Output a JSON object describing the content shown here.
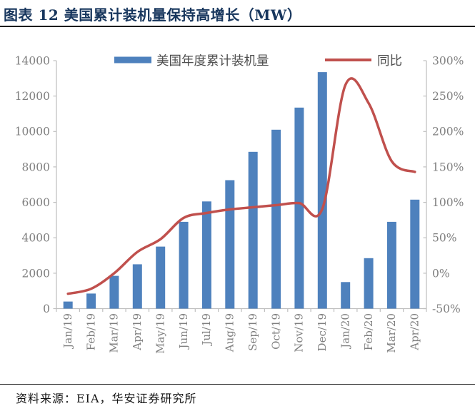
{
  "header": {
    "title": "图表 12 美国累计装机量保持高增长（MW）"
  },
  "footer": {
    "source": "资料来源：EIA，华安证券研究所"
  },
  "colors": {
    "title_navy": "#17365D",
    "bar_blue": "#4E81BD",
    "line_red": "#C0504D",
    "axis_line_gray": "#BFBFBF",
    "axis_text_gray": "#7F7F7F",
    "legend_text_gray": "#4D4D4D"
  },
  "chart_data": {
    "type": "bar+line combo",
    "categories": [
      "Jan/19",
      "Feb/19",
      "Mar/19",
      "Apr/19",
      "May/19",
      "Jun/19",
      "Jul/19",
      "Aug/19",
      "Sep/19",
      "Oct/19",
      "Nov/19",
      "Dec/19",
      "Jan/20",
      "Feb/20",
      "Mar/20",
      "Apr/20"
    ],
    "series": [
      {
        "name": "美国年度累计装机量",
        "type": "bar",
        "axis": "left",
        "color": "#4E81BD",
        "values": [
          400,
          850,
          1850,
          2500,
          3500,
          4900,
          6050,
          7250,
          8850,
          10100,
          11350,
          13350,
          1500,
          2850,
          4900,
          6150
        ]
      },
      {
        "name": "同比",
        "type": "line",
        "axis": "right",
        "color": "#C0504D",
        "smoothed": true,
        "values_pct": [
          -29,
          -22,
          0,
          30,
          48,
          78,
          85,
          90,
          93,
          96,
          99,
          91,
          266,
          240,
          158,
          143
        ]
      }
    ],
    "left_axis": {
      "min": 0,
      "max": 14000,
      "step": 2000,
      "tick_labels": [
        "0",
        "2000",
        "4000",
        "6000",
        "8000",
        "10000",
        "12000",
        "14000"
      ]
    },
    "right_axis": {
      "min": -50,
      "max": 300,
      "step": 50,
      "tick_labels": [
        "-50%",
        "0%",
        "50%",
        "100%",
        "150%",
        "200%",
        "250%",
        "300%"
      ]
    },
    "legend": [
      {
        "label": "美国年度累计装机量",
        "swatch": "bar"
      },
      {
        "label": "同比",
        "swatch": "line"
      }
    ],
    "legend_position": "top-center",
    "grid": false
  }
}
